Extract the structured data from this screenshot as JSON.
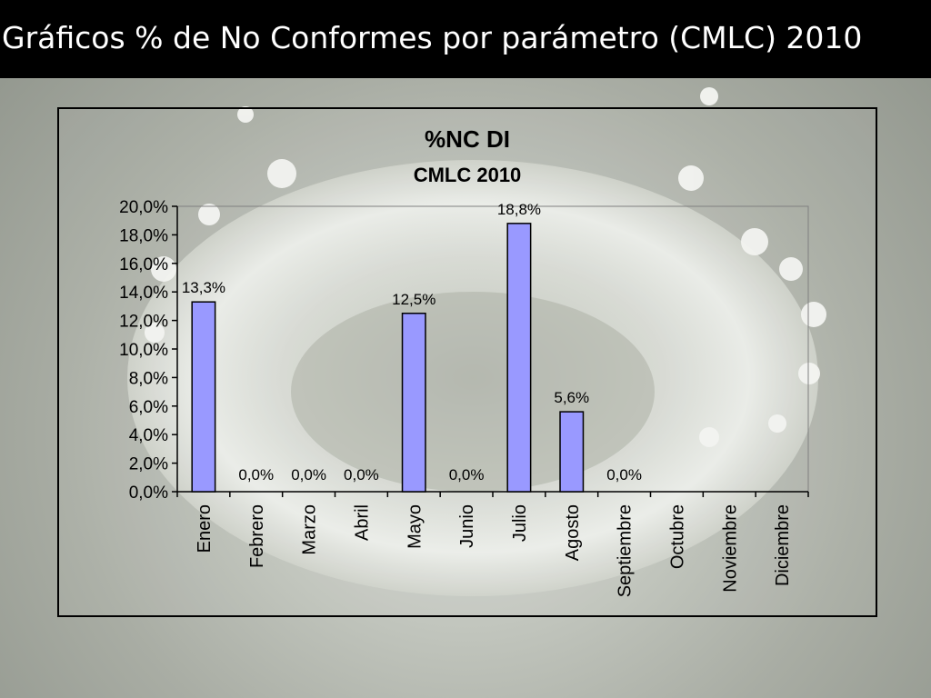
{
  "slide": {
    "title": "Gráficos % de No Conformes por parámetro (CMLC) 2010"
  },
  "colors": {
    "bar_fill": "#9999ff",
    "bar_stroke": "#000000",
    "title_bar": "#000000"
  },
  "chart_data": {
    "type": "bar",
    "title": "%NC DI",
    "subtitle": "CMLC 2010",
    "categories": [
      "Enero",
      "Febrero",
      "Marzo",
      "Abril",
      "Mayo",
      "Junio",
      "Julio",
      "Agosto",
      "Septiembre",
      "Octubre",
      "Noviembre",
      "Diciembre"
    ],
    "values": [
      13.3,
      0.0,
      0.0,
      0.0,
      12.5,
      0.0,
      18.8,
      5.6,
      0.0,
      null,
      null,
      null
    ],
    "data_labels": [
      "13,3%",
      "0,0%",
      "0,0%",
      "0,0%",
      "12,5%",
      "0,0%",
      "18,8%",
      "5,6%",
      "0,0%",
      "",
      "",
      ""
    ],
    "ylim": [
      0,
      20
    ],
    "yticks": [
      "0,0%",
      "2,0%",
      "4,0%",
      "6,0%",
      "8,0%",
      "10,0%",
      "12,0%",
      "14,0%",
      "16,0%",
      "18,0%",
      "20,0%"
    ],
    "xlabel": "",
    "ylabel": "",
    "grid": false,
    "legend": "none"
  }
}
